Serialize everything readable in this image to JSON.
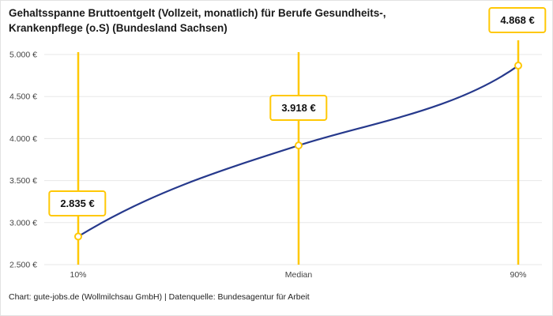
{
  "title": [
    "Gehaltsspanne Bruttoentgelt (Vollzeit, monatlich) für Berufe Gesundheits-,",
    "Krankenpflege (o.S) (Bundesland Sachsen)"
  ],
  "footer": "Chart: gute-jobs.de (Wollmilchsau GmbH) | Datenquelle: Bundesagentur für Arbeit",
  "chart_data": {
    "type": "line",
    "categories": [
      "10%",
      "Median",
      "90%"
    ],
    "values": [
      2835,
      3918,
      4868
    ],
    "value_labels": [
      "2.835 €",
      "3.918 €",
      "4.868 €"
    ],
    "ylim": [
      2500,
      5000
    ],
    "ytick_step": 500,
    "ytick_labels": [
      "2.500 €",
      "3.000 €",
      "3.500 €",
      "4.000 €",
      "4.500 €",
      "5.000 €"
    ],
    "grid": true,
    "legend": "none",
    "colors": {
      "line": "#26398C",
      "highlight": "#FFC805",
      "grid": "#e7e7e7",
      "axis_text": "#444444"
    }
  }
}
